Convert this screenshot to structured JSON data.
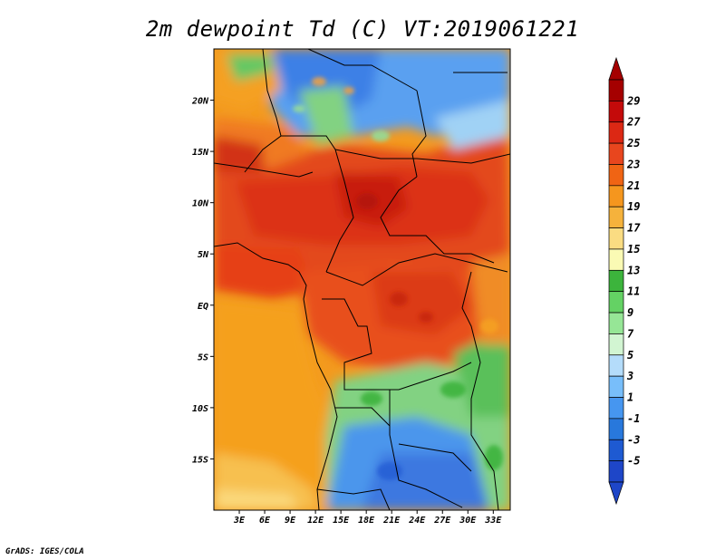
{
  "title": "2m dewpoint Td (C) VT:2019061221",
  "credit": "GrADS: IGES/COLA",
  "map": {
    "lon_min": 0,
    "lon_max": 35,
    "lat_min": -20,
    "lat_max": 25,
    "lon_ticks": [
      {
        "value": 3,
        "label": "3E"
      },
      {
        "value": 6,
        "label": "6E"
      },
      {
        "value": 9,
        "label": "9E"
      },
      {
        "value": 12,
        "label": "12E"
      },
      {
        "value": 15,
        "label": "15E"
      },
      {
        "value": 18,
        "label": "18E"
      },
      {
        "value": 21,
        "label": "21E"
      },
      {
        "value": 24,
        "label": "24E"
      },
      {
        "value": 27,
        "label": "27E"
      },
      {
        "value": 30,
        "label": "30E"
      },
      {
        "value": 33,
        "label": "33E"
      }
    ],
    "lat_ticks": [
      {
        "value": 20,
        "label": "20N"
      },
      {
        "value": 15,
        "label": "15N"
      },
      {
        "value": 10,
        "label": "10N"
      },
      {
        "value": 5,
        "label": "5N"
      },
      {
        "value": 0,
        "label": "EQ"
      },
      {
        "value": -5,
        "label": "5S"
      },
      {
        "value": -10,
        "label": "10S"
      },
      {
        "value": -15,
        "label": "15S"
      }
    ]
  },
  "colorbar": {
    "labels": [
      "29",
      "27",
      "25",
      "23",
      "21",
      "19",
      "17",
      "15",
      "13",
      "11",
      "9",
      "7",
      "5",
      "3",
      "1",
      "-1",
      "-3",
      "-5"
    ],
    "colors": [
      "#a50000",
      "#c40a0a",
      "#dc2814",
      "#e8461e",
      "#f06414",
      "#f5961e",
      "#f5b23c",
      "#fadc82",
      "#fafab4",
      "#3cb43c",
      "#64d264",
      "#96e696",
      "#d2f5d2",
      "#b4dcfa",
      "#78befa",
      "#4696f0",
      "#2878dc",
      "#1e5ad2",
      "#1e46c8"
    ],
    "top_color": "#a50000",
    "bottom_color": "#1e46c8"
  }
}
